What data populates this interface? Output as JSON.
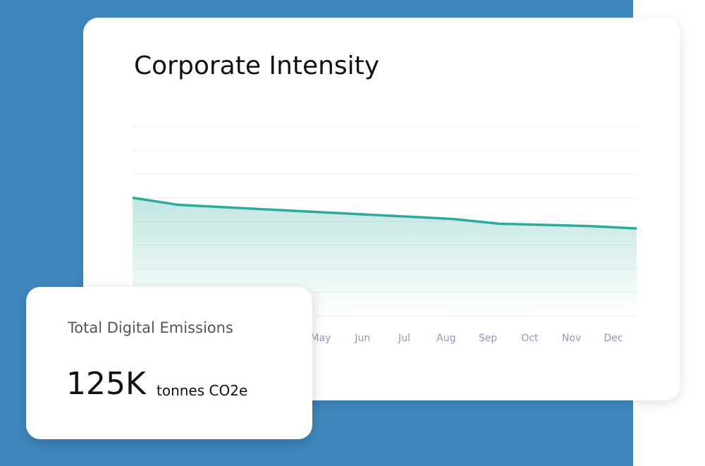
{
  "chart_data": {
    "type": "line",
    "title": "Corporate Intensity",
    "categories": [
      null,
      null,
      null,
      null,
      "May",
      "Jun",
      "Jul",
      "Aug",
      "Sep",
      "Oct",
      "Nov",
      "Dec"
    ],
    "values": [
      5.0,
      4.7,
      4.6,
      4.5,
      4.4,
      4.3,
      4.2,
      4.1,
      3.9,
      3.85,
      3.8,
      3.7
    ],
    "color": "#2eaa9c",
    "ylim": [
      0,
      8
    ],
    "grid": true
  },
  "card": {
    "title": "Total Digital Emissions",
    "value": "125K",
    "unit": "tonnes CO2e"
  }
}
